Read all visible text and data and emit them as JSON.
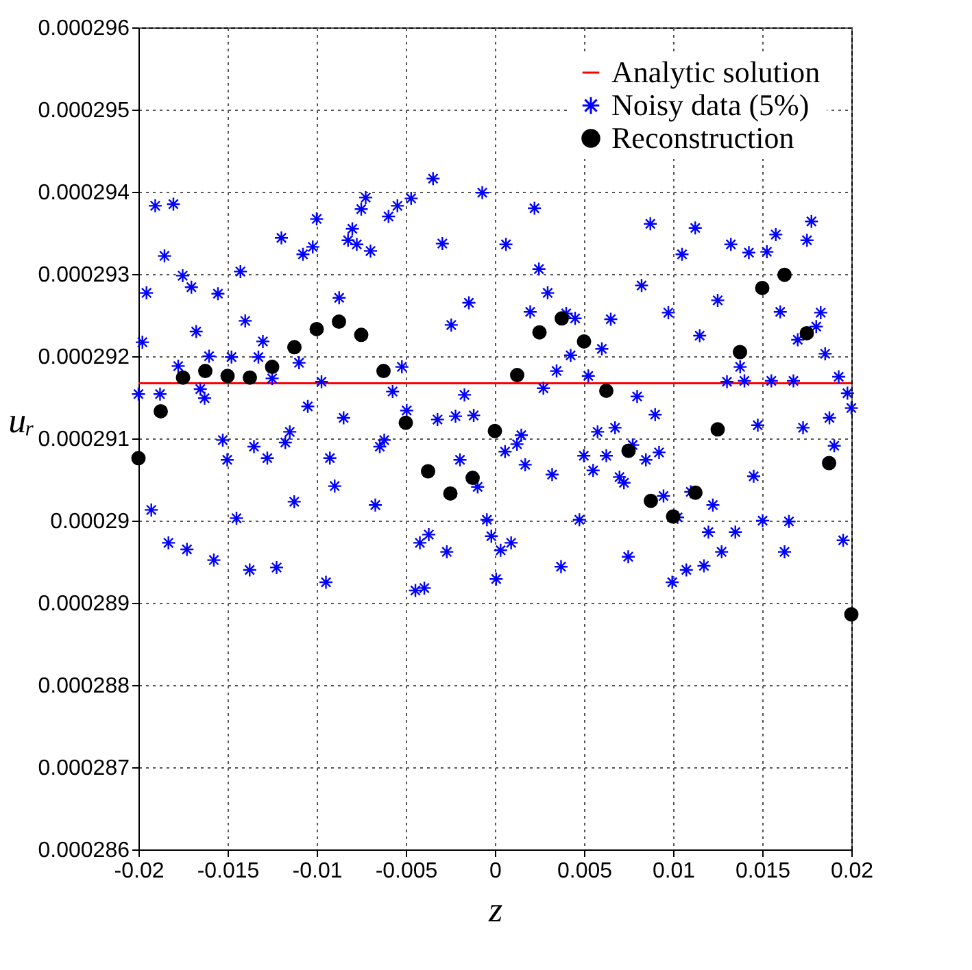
{
  "chart_data": {
    "type": "scatter",
    "xlabel": "z",
    "ylabel": "uᵣ",
    "xlim": [
      -0.02,
      0.02
    ],
    "xticks": [
      -0.02,
      -0.015,
      -0.01,
      -0.005,
      0,
      0.005,
      0.01,
      0.015,
      0.02
    ],
    "ylim": [
      0.000286,
      0.000296
    ],
    "yticks": [
      0.000286,
      0.000287,
      0.000288,
      0.000289,
      0.00029,
      0.000291,
      0.000292,
      0.000293,
      0.000294,
      0.000295,
      0.000296
    ],
    "grid": true,
    "legend": "top right",
    "series": [
      {
        "name": "Analytic solution",
        "type": "line",
        "color": "#ff0000",
        "line_style": "solid",
        "x": [
          -0.02,
          0.02
        ],
        "values": [
          0.00029167,
          0.00029167
        ]
      },
      {
        "name": "Noisy data (5%)",
        "color": "#0000ff",
        "marker": "cross",
        "x": [
          -0.02,
          -0.01978,
          -0.01955,
          -0.01928,
          -0.01906,
          -0.01879,
          -0.01854,
          -0.01832,
          -0.01804,
          -0.01777,
          -0.01752,
          -0.01728,
          -0.01703,
          -0.01676,
          -0.01653,
          -0.01629,
          -0.01604,
          -0.01577,
          -0.01554,
          -0.01527,
          -0.01502,
          -0.01478,
          -0.0145,
          -0.01428,
          -0.01401,
          -0.01376,
          -0.01352,
          -0.01327,
          -0.01302,
          -0.01277,
          -0.0125,
          -0.01225,
          -0.01198,
          -0.01176,
          -0.01151,
          -0.01126,
          -0.01099,
          -0.01077,
          -0.0105,
          -0.01022,
          -0.01,
          -0.00973,
          -0.00948,
          -0.00926,
          -0.00899,
          -0.00874,
          -0.00849,
          -0.00824,
          -0.008,
          -0.00775,
          -0.0075,
          -0.00725,
          -0.00698,
          -0.00671,
          -0.00646,
          -0.00621,
          -0.00597,
          -0.00574,
          -0.00547,
          -0.00522,
          -0.00495,
          -0.0047,
          -0.00446,
          -0.00421,
          -0.00396,
          -0.00371,
          -0.00347,
          -0.00322,
          -0.00295,
          -0.0027,
          -0.00245,
          -0.00221,
          -0.00196,
          -0.00171,
          -0.00146,
          -0.00119,
          -0.00097,
          -0.00071,
          -0.00045,
          -0.0002,
          7e-05,
          0.00032,
          0.00057,
          0.00062,
          0.00091,
          0.00124,
          0.00148,
          0.0017,
          0.00198,
          0.00222,
          0.00247,
          0.00272,
          0.00296,
          0.00321,
          0.00346,
          0.00371,
          0.004,
          0.00425,
          0.0045,
          0.00474,
          0.00499,
          0.00524,
          0.00551,
          0.00576,
          0.006,
          0.00625,
          0.0065,
          0.00674,
          0.00699,
          0.00724,
          0.00748,
          0.00773,
          0.00798,
          0.00823,
          0.00847,
          0.00872,
          0.00899,
          0.00921,
          0.00946,
          0.00973,
          0.00995,
          0.01025,
          0.0105,
          0.01074,
          0.01099,
          0.01124,
          0.01149,
          0.01173,
          0.01198,
          0.01223,
          0.0125,
          0.01272,
          0.01302,
          0.01324,
          0.01349,
          0.01376,
          0.014,
          0.01425,
          0.01452,
          0.01475,
          0.01502,
          0.01526,
          0.01551,
          0.01576,
          0.01601,
          0.01625,
          0.0165,
          0.01675,
          0.01699,
          0.01729,
          0.01751,
          0.01776,
          0.01803,
          0.01828,
          0.01853,
          0.01877,
          0.01904,
          0.01929,
          0.01954,
          0.01978,
          0.02
        ],
        "values": [
          0.00029154,
          0.00029217,
          0.00029277,
          0.00029013,
          0.00029383,
          0.00029154,
          0.00029322,
          0.00028973,
          0.00029385,
          0.00029188,
          0.00029298,
          0.00028965,
          0.00029284,
          0.0002923,
          0.0002916,
          0.00029149,
          0.000292,
          0.00028952,
          0.00029276,
          0.00029098,
          0.00029074,
          0.00029199,
          0.00029003,
          0.00029303,
          0.00029243,
          0.0002894,
          0.0002909,
          0.00029199,
          0.00029218,
          0.00029076,
          0.00029173,
          0.00028943,
          0.00029344,
          0.00029095,
          0.00029108,
          0.00029023,
          0.00029192,
          0.00029324,
          0.00029139,
          0.00029333,
          0.00029367,
          0.00029169,
          0.00028925,
          0.00029076,
          0.00029042,
          0.00029271,
          0.00029125,
          0.00029341,
          0.00029355,
          0.00029336,
          0.00029379,
          0.00029393,
          0.00029328,
          0.00029019,
          0.0002909,
          0.00029098,
          0.0002937,
          0.00029157,
          0.00029383,
          0.00029187,
          0.00029134,
          0.00029392,
          0.00028915,
          0.00028973,
          0.00028918,
          0.00028983,
          0.00029416,
          0.00029123,
          0.00029337,
          0.00028962,
          0.00029238,
          0.00029127,
          0.00029074,
          0.00029153,
          0.00029265,
          0.00029128,
          0.00029041,
          0.00029399,
          0.00029001,
          0.00028981,
          0.00028929,
          0.00028964,
          0.00029084,
          0.00029336,
          0.00028973,
          0.00029093,
          0.00029104,
          0.00029068,
          0.00029254,
          0.0002938,
          0.00029306,
          0.00029161,
          0.00029277,
          0.00029056,
          0.00029182,
          0.00028944,
          0.00029252,
          0.00029201,
          0.00029246,
          0.00029001,
          0.00029079,
          0.00029176,
          0.00029061,
          0.00029108,
          0.00029209,
          0.00029079,
          0.00029245,
          0.00029113,
          0.00029053,
          0.00029046,
          0.00028956,
          0.00029092,
          0.00029151,
          0.00029286,
          0.00029074,
          0.00029361,
          0.00029129,
          0.00029083,
          0.0002903,
          0.00029253,
          0.00028925,
          0.00029004,
          0.00029324,
          0.0002894,
          0.00029035,
          0.00029356,
          0.00029225,
          0.00028945,
          0.00028986,
          0.00029019,
          0.00029268,
          0.00028962,
          0.00029169,
          0.00029336,
          0.00028986,
          0.00029187,
          0.0002917,
          0.00029326,
          0.00029054,
          0.00029116,
          0.00029,
          0.00029327,
          0.0002917,
          0.00029348,
          0.00029254,
          0.00028962,
          0.00028999,
          0.0002917,
          0.0002922,
          0.00029113,
          0.00029341,
          0.00029364,
          0.00029236,
          0.00029253,
          0.00029203,
          0.00029125,
          0.00029091,
          0.00029175,
          0.00028976,
          0.00029155,
          0.00029137
        ]
      },
      {
        "name": "Reconstruction",
        "color": "#000000",
        "marker": "circle",
        "x": [
          -0.02,
          -0.01875,
          -0.0175,
          -0.01625,
          -0.015,
          -0.01375,
          -0.0125,
          -0.01125,
          -0.01,
          -0.00875,
          -0.0075,
          -0.00625,
          -0.005,
          -0.00375,
          -0.0025,
          -0.00125,
          0,
          0.00125,
          0.0025,
          0.00375,
          0.005,
          0.00625,
          0.0075,
          0.00875,
          0.01,
          0.01125,
          0.0125,
          0.01375,
          0.015,
          0.01625,
          0.0175,
          0.01875,
          0.02
        ],
        "values": [
          0.00029076,
          0.00029133,
          0.00029174,
          0.00029182,
          0.00029176,
          0.00029174,
          0.00029187,
          0.00029211,
          0.00029233,
          0.00029242,
          0.00029226,
          0.00029182,
          0.00029119,
          0.0002906,
          0.00029033,
          0.00029052,
          0.00029109,
          0.00029177,
          0.00029229,
          0.00029246,
          0.00029218,
          0.00029158,
          0.00029085,
          0.00029024,
          0.00029005,
          0.00029034,
          0.00029111,
          0.00029205,
          0.00029283,
          0.00029299,
          0.00029228,
          0.0002907,
          0.00028886
        ]
      }
    ]
  }
}
